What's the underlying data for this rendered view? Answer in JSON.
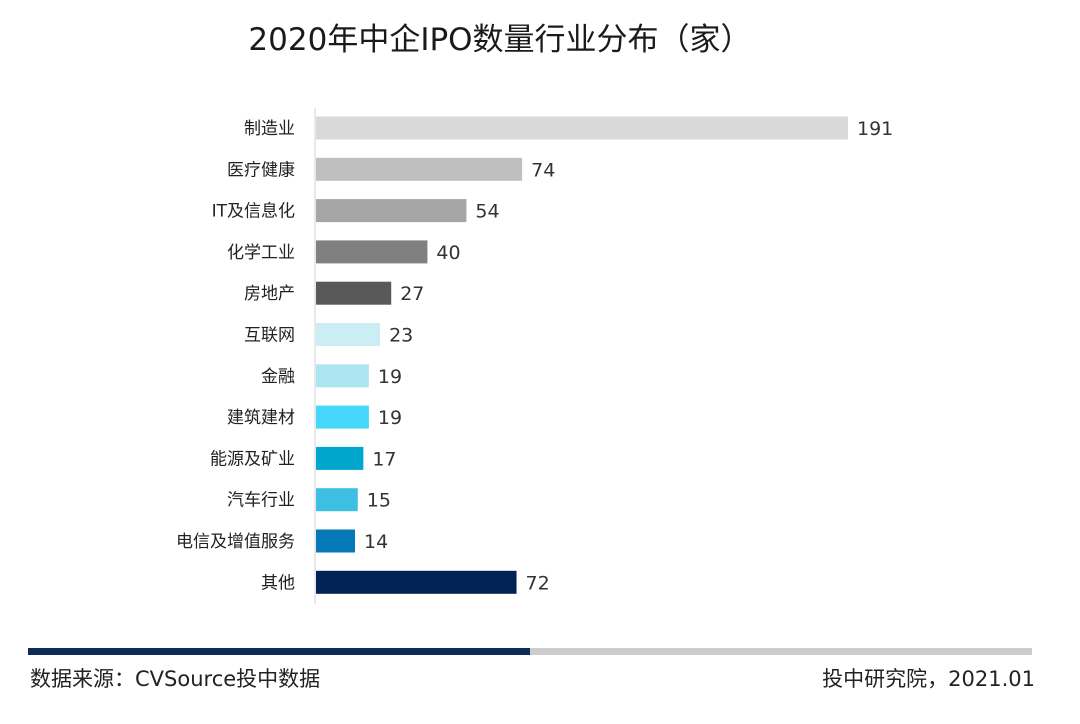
{
  "chart_data": {
    "type": "bar",
    "orientation": "horizontal",
    "title": "2020年中企IPO数量行业分布（家）",
    "categories": [
      "制造业",
      "医疗健康",
      "IT及信息化",
      "化学工业",
      "房地产",
      "互联网",
      "金融",
      "建筑建材",
      "能源及矿业",
      "汽车行业",
      "电信及增值服务",
      "其他"
    ],
    "values": [
      191,
      74,
      54,
      40,
      27,
      23,
      19,
      19,
      17,
      15,
      14,
      72
    ],
    "colors": [
      "#d9d9d9",
      "#bfbfbf",
      "#a6a6a6",
      "#808080",
      "#595959",
      "#cbeef5",
      "#ade6f3",
      "#45d8fb",
      "#00a6cc",
      "#3dbfe3",
      "#0679b8",
      "#002255"
    ],
    "xlim": [
      0,
      191
    ],
    "xlabel": "",
    "ylabel": "",
    "grid": false
  },
  "footer": {
    "source": "数据来源：CVSource投中数据",
    "credit": "投中研究院，2021.01"
  }
}
